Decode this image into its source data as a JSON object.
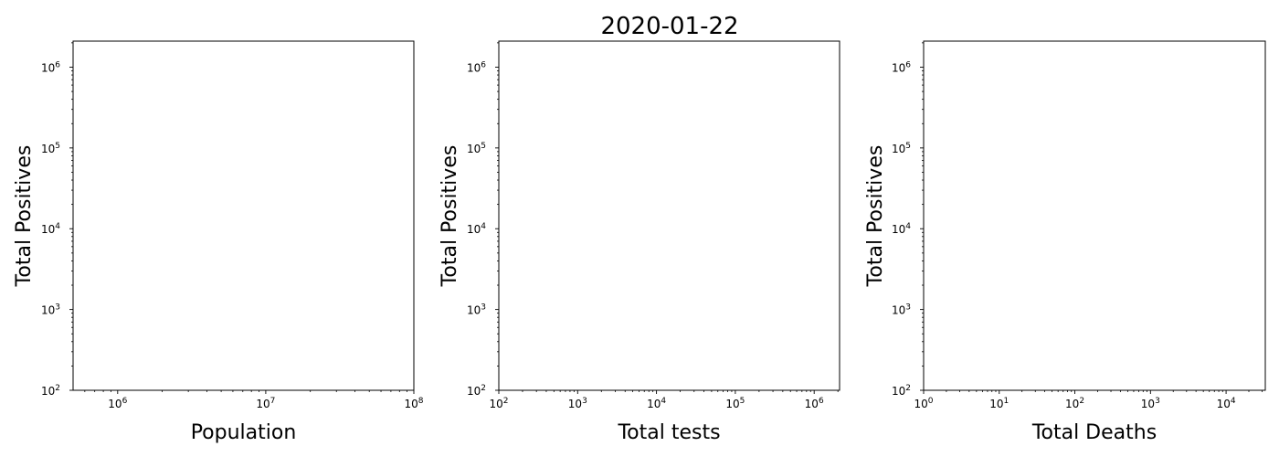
{
  "figure": {
    "title": "2020-01-22"
  },
  "chart_data": [
    {
      "type": "scatter",
      "title": "",
      "xlabel": "Population",
      "ylabel": "Total Positives",
      "xscale": "log",
      "yscale": "log",
      "xlim": [
        500000,
        100000000
      ],
      "ylim": [
        100,
        2100000
      ],
      "x_major_ticks": [
        {
          "value": 1000000,
          "base": "10",
          "exp": "6"
        },
        {
          "value": 10000000,
          "base": "10",
          "exp": "7"
        },
        {
          "value": 100000000,
          "base": "10",
          "exp": "8"
        }
      ],
      "y_major_ticks": [
        {
          "value": 100,
          "base": "10",
          "exp": "2"
        },
        {
          "value": 1000,
          "base": "10",
          "exp": "3"
        },
        {
          "value": 10000,
          "base": "10",
          "exp": "4"
        },
        {
          "value": 100000,
          "base": "10",
          "exp": "5"
        },
        {
          "value": 1000000,
          "base": "10",
          "exp": "6"
        }
      ],
      "grid": false,
      "series": []
    },
    {
      "type": "scatter",
      "title": "",
      "xlabel": "Total tests",
      "ylabel": "Total Positives",
      "xscale": "log",
      "yscale": "log",
      "xlim": [
        100,
        2100000
      ],
      "ylim": [
        100,
        2100000
      ],
      "x_major_ticks": [
        {
          "value": 100,
          "base": "10",
          "exp": "2"
        },
        {
          "value": 1000,
          "base": "10",
          "exp": "3"
        },
        {
          "value": 10000,
          "base": "10",
          "exp": "4"
        },
        {
          "value": 100000,
          "base": "10",
          "exp": "5"
        },
        {
          "value": 1000000,
          "base": "10",
          "exp": "6"
        }
      ],
      "y_major_ticks": [
        {
          "value": 100,
          "base": "10",
          "exp": "2"
        },
        {
          "value": 1000,
          "base": "10",
          "exp": "3"
        },
        {
          "value": 10000,
          "base": "10",
          "exp": "4"
        },
        {
          "value": 100000,
          "base": "10",
          "exp": "5"
        },
        {
          "value": 1000000,
          "base": "10",
          "exp": "6"
        }
      ],
      "grid": false,
      "series": []
    },
    {
      "type": "scatter",
      "title": "",
      "xlabel": "Total Deaths",
      "ylabel": "Total Positives",
      "xscale": "log",
      "yscale": "log",
      "xlim": [
        1,
        33000
      ],
      "ylim": [
        100,
        2100000
      ],
      "x_major_ticks": [
        {
          "value": 1,
          "base": "10",
          "exp": "0"
        },
        {
          "value": 10,
          "base": "10",
          "exp": "1"
        },
        {
          "value": 100,
          "base": "10",
          "exp": "2"
        },
        {
          "value": 1000,
          "base": "10",
          "exp": "3"
        },
        {
          "value": 10000,
          "base": "10",
          "exp": "4"
        }
      ],
      "y_major_ticks": [
        {
          "value": 100,
          "base": "10",
          "exp": "2"
        },
        {
          "value": 1000,
          "base": "10",
          "exp": "3"
        },
        {
          "value": 10000,
          "base": "10",
          "exp": "4"
        },
        {
          "value": 100000,
          "base": "10",
          "exp": "5"
        },
        {
          "value": 1000000,
          "base": "10",
          "exp": "6"
        }
      ],
      "grid": false,
      "series": []
    }
  ]
}
